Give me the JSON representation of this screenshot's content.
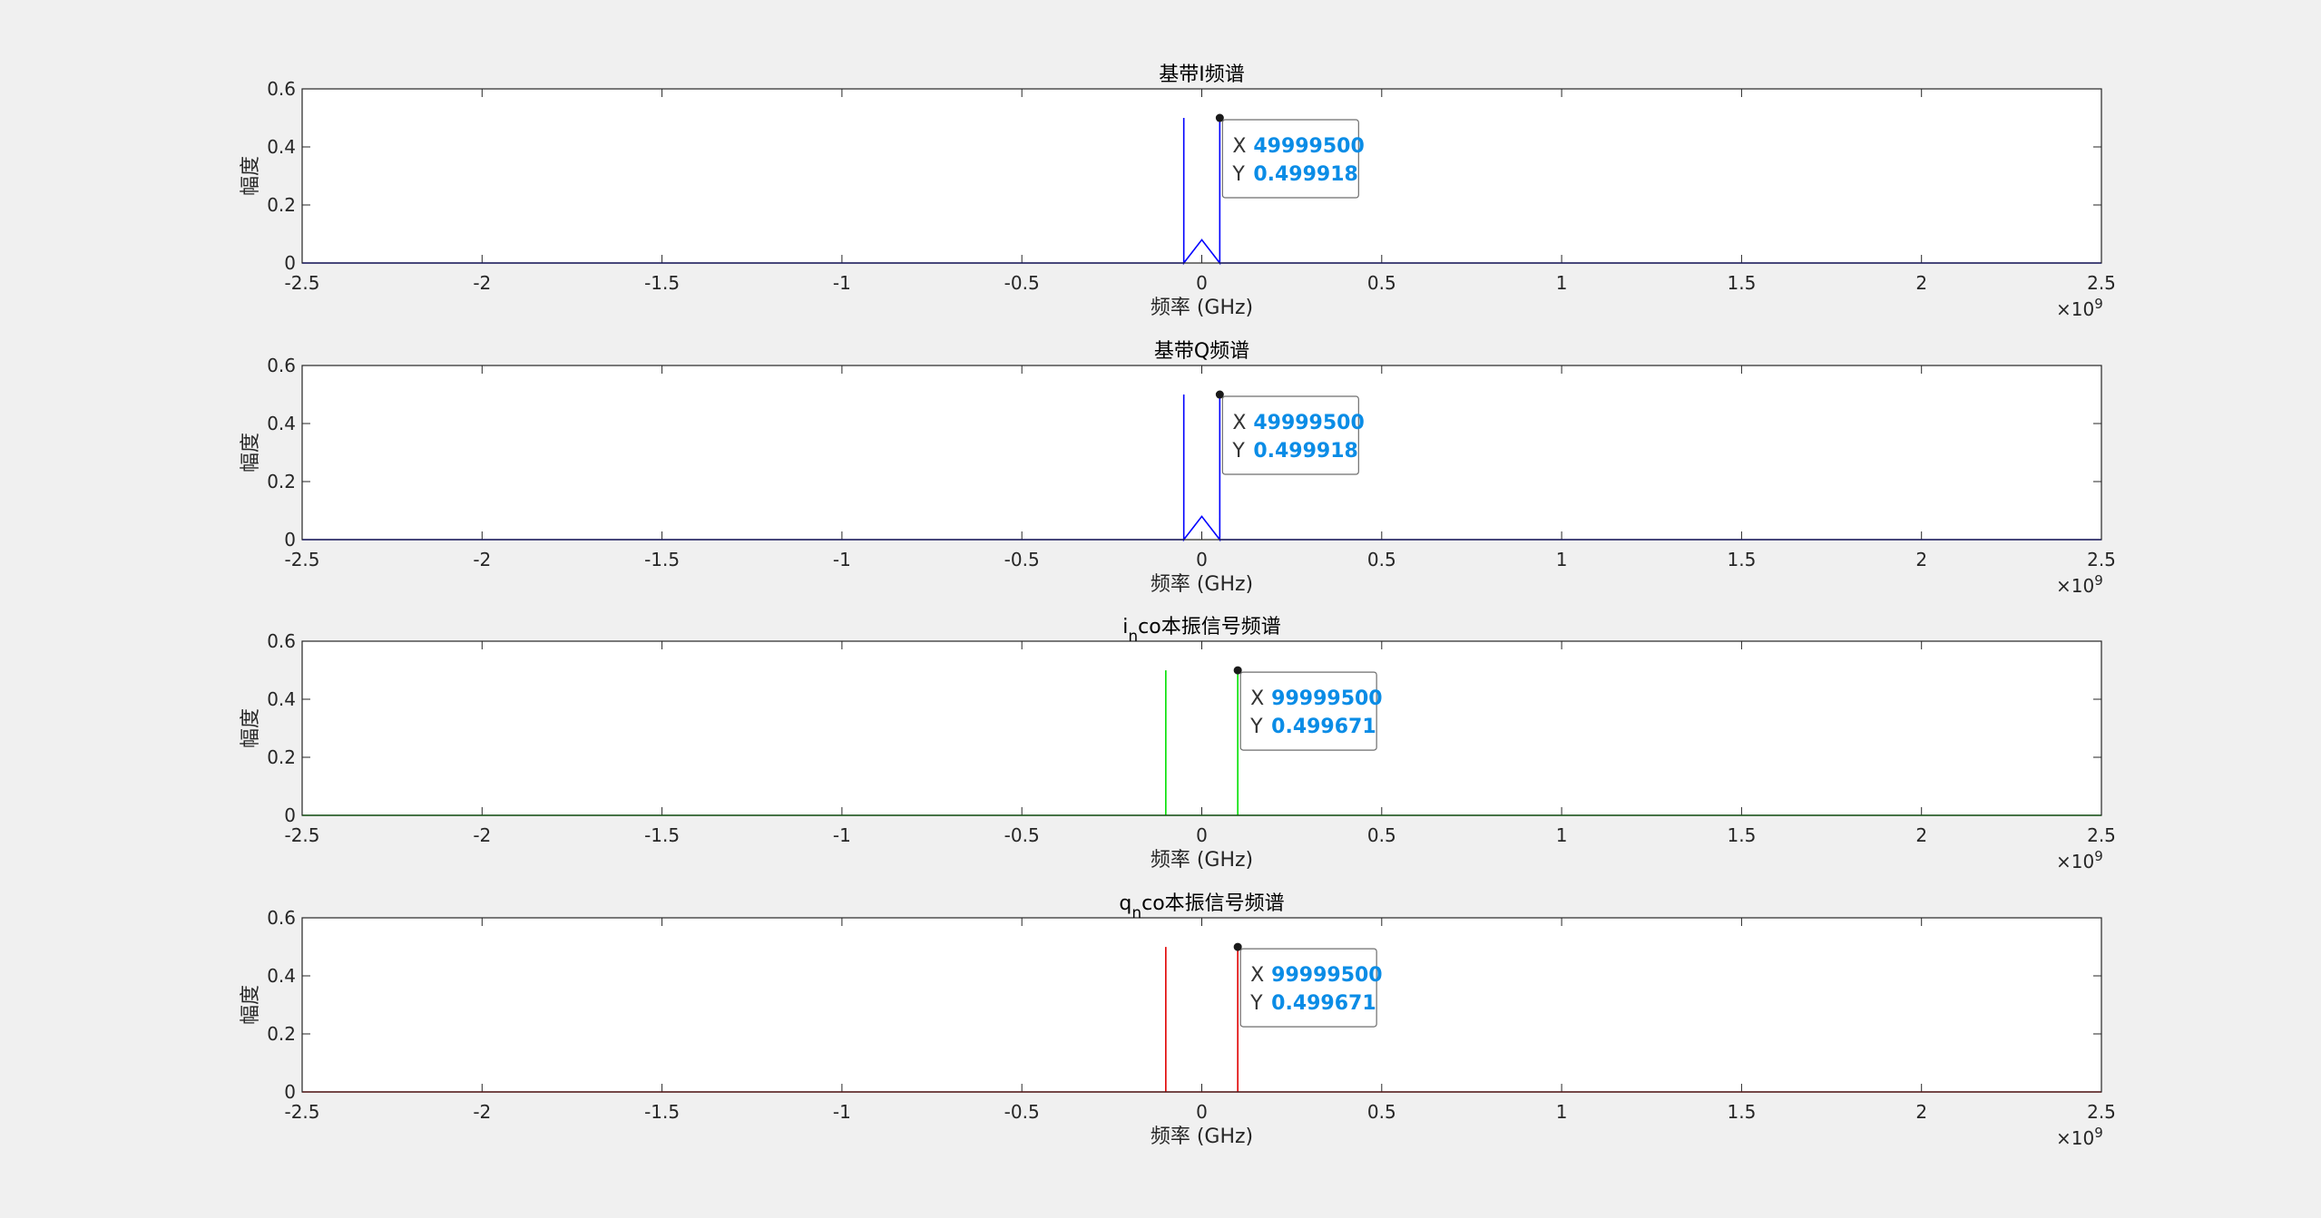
{
  "chart_data": [
    {
      "type": "line",
      "title": "基带I频谱",
      "title_parts": {
        "base": "基带I频谱",
        "sub": "",
        "rest": ""
      },
      "xlabel": "频率 (GHz)",
      "ylabel": "幅度",
      "xlim": [
        -2500000000,
        2500000000
      ],
      "ylim": [
        0,
        0.6
      ],
      "xticks": [
        -2.5,
        -2,
        -1.5,
        -1,
        -0.5,
        0,
        0.5,
        1,
        1.5,
        2,
        2.5
      ],
      "xtick_labels": [
        "-2.5",
        "-2",
        "-1.5",
        "-1",
        "-0.5",
        "0",
        "0.5",
        "1",
        "1.5",
        "2",
        "2.5"
      ],
      "yticks": [
        0,
        0.2,
        0.4,
        0.6
      ],
      "ytick_labels": [
        "0",
        "0.2",
        "0.4",
        "0.6"
      ],
      "x_exponent_label": "×10",
      "x_exponent_power": "9",
      "color": "#0000ff",
      "series": [
        {
          "x": [
            -50000000,
            -49999500,
            -49999000,
            0,
            49999000,
            49999500,
            50000000
          ],
          "y": [
            0,
            0.499918,
            0,
            0.08,
            0,
            0.499918,
            0
          ]
        }
      ],
      "datatip": {
        "x_key": "X",
        "x_value": "49999500",
        "y_key": "Y",
        "y_value": "0.499918",
        "x": 49999500,
        "y": 0.499918
      }
    },
    {
      "type": "line",
      "title": "基带Q频谱",
      "title_parts": {
        "base": "基带Q频谱",
        "sub": "",
        "rest": ""
      },
      "xlabel": "频率 (GHz)",
      "ylabel": "幅度",
      "xlim": [
        -2500000000,
        2500000000
      ],
      "ylim": [
        0,
        0.6
      ],
      "xticks": [
        -2.5,
        -2,
        -1.5,
        -1,
        -0.5,
        0,
        0.5,
        1,
        1.5,
        2,
        2.5
      ],
      "xtick_labels": [
        "-2.5",
        "-2",
        "-1.5",
        "-1",
        "-0.5",
        "0",
        "0.5",
        "1",
        "1.5",
        "2",
        "2.5"
      ],
      "yticks": [
        0,
        0.2,
        0.4,
        0.6
      ],
      "ytick_labels": [
        "0",
        "0.2",
        "0.4",
        "0.6"
      ],
      "x_exponent_label": "×10",
      "x_exponent_power": "9",
      "color": "#0000ff",
      "series": [
        {
          "x": [
            -50000000,
            -49999500,
            -49999000,
            0,
            49999000,
            49999500,
            50000000
          ],
          "y": [
            0,
            0.499918,
            0,
            0.08,
            0,
            0.499918,
            0
          ]
        }
      ],
      "datatip": {
        "x_key": "X",
        "x_value": "49999500",
        "y_key": "Y",
        "y_value": "0.499918",
        "x": 49999500,
        "y": 0.499918
      }
    },
    {
      "type": "line",
      "title": "i_nco本振信号频谱",
      "title_parts": {
        "base": "i",
        "sub": "n",
        "rest": "co本振信号频谱"
      },
      "xlabel": "频率 (GHz)",
      "ylabel": "幅度",
      "xlim": [
        -2500000000,
        2500000000
      ],
      "ylim": [
        0,
        0.6
      ],
      "xticks": [
        -2.5,
        -2,
        -1.5,
        -1,
        -0.5,
        0,
        0.5,
        1,
        1.5,
        2,
        2.5
      ],
      "xtick_labels": [
        "-2.5",
        "-2",
        "-1.5",
        "-1",
        "-0.5",
        "0",
        "0.5",
        "1",
        "1.5",
        "2",
        "2.5"
      ],
      "yticks": [
        0,
        0.2,
        0.4,
        0.6
      ],
      "ytick_labels": [
        "0",
        "0.2",
        "0.4",
        "0.6"
      ],
      "x_exponent_label": "×10",
      "x_exponent_power": "9",
      "color": "#00e000",
      "series": [
        {
          "x": [
            -100000000,
            -99999500,
            -99999000,
            99999000,
            99999500,
            100000000
          ],
          "y": [
            0,
            0.499671,
            0,
            0,
            0.499671,
            0
          ]
        }
      ],
      "datatip": {
        "x_key": "X",
        "x_value": "99999500",
        "y_key": "Y",
        "y_value": "0.499671",
        "x": 99999500,
        "y": 0.499671
      }
    },
    {
      "type": "line",
      "title": "q_nco本振信号频谱",
      "title_parts": {
        "base": "q",
        "sub": "n",
        "rest": "co本振信号频谱"
      },
      "xlabel": "频率 (GHz)",
      "ylabel": "幅度",
      "xlim": [
        -2500000000,
        2500000000
      ],
      "ylim": [
        0,
        0.6
      ],
      "xticks": [
        -2.5,
        -2,
        -1.5,
        -1,
        -0.5,
        0,
        0.5,
        1,
        1.5,
        2,
        2.5
      ],
      "xtick_labels": [
        "-2.5",
        "-2",
        "-1.5",
        "-1",
        "-0.5",
        "0",
        "0.5",
        "1",
        "1.5",
        "2",
        "2.5"
      ],
      "yticks": [
        0,
        0.2,
        0.4,
        0.6
      ],
      "ytick_labels": [
        "0",
        "0.2",
        "0.4",
        "0.6"
      ],
      "x_exponent_label": "×10",
      "x_exponent_power": "9",
      "color": "#e00000",
      "series": [
        {
          "x": [
            -100000000,
            -99999500,
            -99999000,
            99999000,
            99999500,
            100000000
          ],
          "y": [
            0,
            0.499671,
            0,
            0,
            0.499671,
            0
          ]
        }
      ],
      "datatip": {
        "x_key": "X",
        "x_value": "99999500",
        "y_key": "Y",
        "y_value": "0.499671",
        "x": 99999500,
        "y": 0.499671
      }
    }
  ]
}
